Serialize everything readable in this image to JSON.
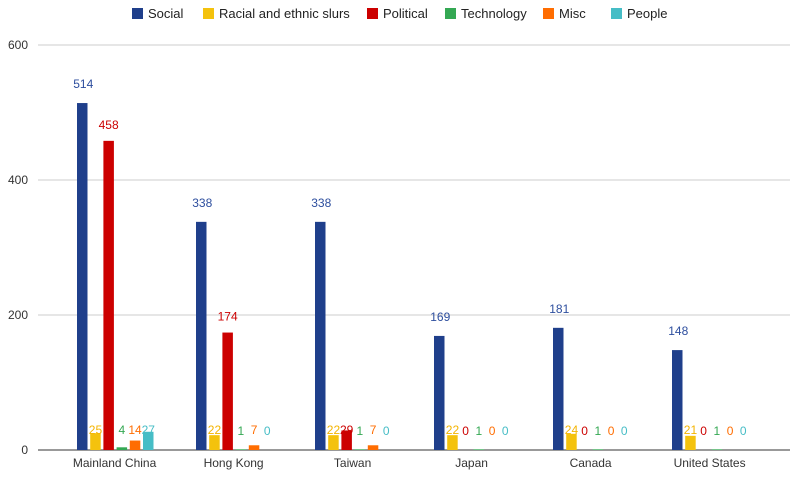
{
  "chart_data": {
    "type": "bar",
    "categories": [
      "Mainland China",
      "Hong Kong",
      "Taiwan",
      "Japan",
      "Canada",
      "United States"
    ],
    "series": [
      {
        "name": "Social",
        "color": "#1f3f8b",
        "label_color": "#2d4e9e",
        "values": [
          514,
          338,
          338,
          169,
          181,
          148
        ]
      },
      {
        "name": "Racial and ethnic slurs",
        "color": "#f4c20d",
        "label_color": "#f4b400",
        "values": [
          25,
          22,
          22,
          22,
          24,
          21
        ]
      },
      {
        "name": "Political",
        "color": "#cc0000",
        "label_color": "#cc0000",
        "values": [
          458,
          174,
          29,
          0,
          0,
          0
        ]
      },
      {
        "name": "Technology",
        "color": "#34a853",
        "label_color": "#34a853",
        "values": [
          4,
          1,
          1,
          1,
          1,
          1
        ]
      },
      {
        "name": "Misc",
        "color": "#ff6d01",
        "label_color": "#ff6d01",
        "values": [
          14,
          7,
          7,
          0,
          0,
          0
        ]
      },
      {
        "name": "People",
        "color": "#46bdc6",
        "label_color": "#46bdc6",
        "values": [
          27,
          0,
          0,
          0,
          0,
          0
        ]
      }
    ],
    "ylim": [
      0,
      600
    ],
    "yticks": [
      0,
      200,
      400,
      600
    ],
    "grid": true,
    "legend": "top-center",
    "xlabel": "",
    "ylabel": ""
  }
}
